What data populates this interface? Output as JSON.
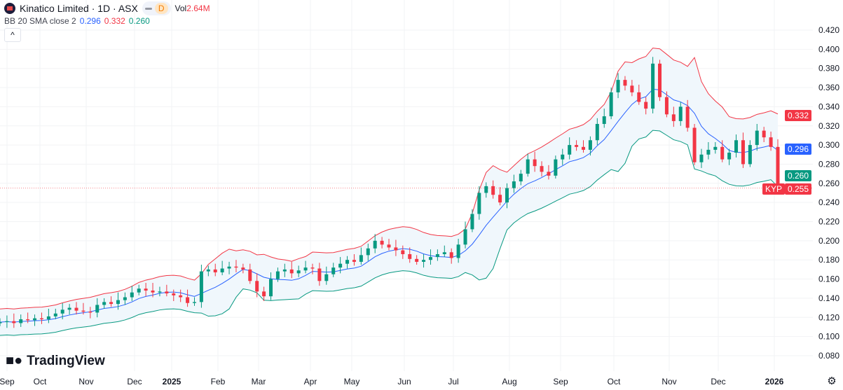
{
  "header": {
    "title": "Kinatico Limited · 1D · ASX",
    "interval_badge": "D",
    "vol_label": "Vol",
    "vol_value": "2.64M"
  },
  "indicator": {
    "label": "BB 20 SMA close 2",
    "basis": "0.296",
    "upper": "0.332",
    "lower": "0.260"
  },
  "colors": {
    "up": "#089981",
    "down": "#f23645",
    "basis": "#2962ff",
    "upper": "#f23645",
    "lower": "#089981",
    "band_fill": "#f0f7fc"
  },
  "price_tags": {
    "upper": "0.332",
    "basis": "0.296",
    "lower": "0.260",
    "symbol": "KYP",
    "last": "0.255"
  },
  "branding": "TradingView",
  "chart_data": {
    "type": "candlestick",
    "title": "Kinatico Limited · 1D · ASX",
    "ylim": [
      0.07,
      0.43
    ],
    "yticks": [
      "0.420",
      "0.400",
      "0.380",
      "0.360",
      "0.340",
      "0.320",
      "0.300",
      "0.280",
      "0.260",
      "0.240",
      "0.220",
      "0.200",
      "0.180",
      "0.160",
      "0.140",
      "0.120",
      "0.100",
      "0.080"
    ],
    "xticks": [
      "Sep",
      "Oct",
      "Nov",
      "Dec",
      "2025",
      "Feb",
      "Mar",
      "Apr",
      "May",
      "Jun",
      "Jul",
      "Aug",
      "Sep",
      "Oct",
      "Nov",
      "Dec",
      "2026"
    ],
    "closes": [
      0.115,
      0.116,
      0.114,
      0.118,
      0.117,
      0.119,
      0.118,
      0.121,
      0.124,
      0.128,
      0.13,
      0.127,
      0.126,
      0.125,
      0.133,
      0.136,
      0.134,
      0.138,
      0.141,
      0.146,
      0.15,
      0.148,
      0.146,
      0.147,
      0.145,
      0.143,
      0.141,
      0.135,
      0.136,
      0.168,
      0.17,
      0.167,
      0.171,
      0.173,
      0.172,
      0.17,
      0.158,
      0.147,
      0.142,
      0.16,
      0.168,
      0.17,
      0.166,
      0.169,
      0.172,
      0.171,
      0.158,
      0.165,
      0.172,
      0.176,
      0.18,
      0.178,
      0.185,
      0.192,
      0.2,
      0.196,
      0.193,
      0.19,
      0.186,
      0.181,
      0.178,
      0.18,
      0.183,
      0.186,
      0.188,
      0.182,
      0.196,
      0.212,
      0.228,
      0.25,
      0.257,
      0.248,
      0.24,
      0.255,
      0.262,
      0.27,
      0.285,
      0.278,
      0.272,
      0.268,
      0.285,
      0.29,
      0.3,
      0.298,
      0.295,
      0.305,
      0.322,
      0.33,
      0.355,
      0.368,
      0.362,
      0.355,
      0.345,
      0.338,
      0.385,
      0.35,
      0.332,
      0.325,
      0.34,
      0.318,
      0.282,
      0.29,
      0.295,
      0.298,
      0.285,
      0.292,
      0.305,
      0.28,
      0.3,
      0.315,
      0.308,
      0.298,
      0.255
    ],
    "last_price": 0.255
  }
}
